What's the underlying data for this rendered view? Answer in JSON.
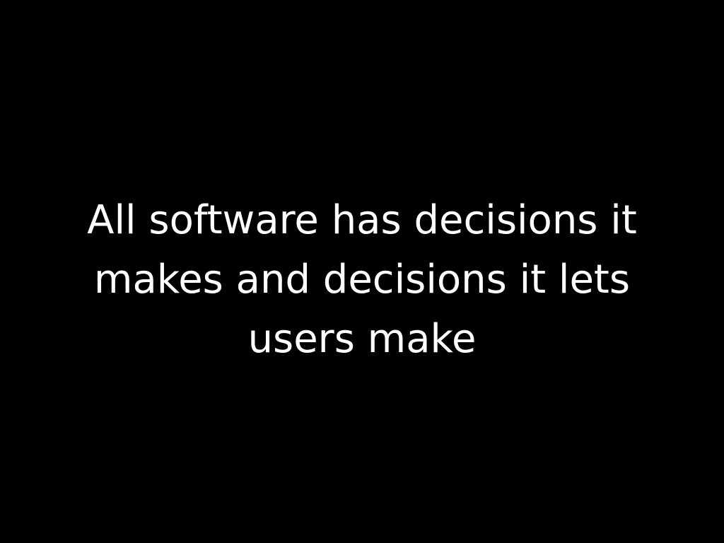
{
  "slide": {
    "background": "#000000",
    "text_color": "#ffffff",
    "lines": [
      "All software has decisions it",
      "makes and decisions it lets",
      "users make"
    ]
  }
}
